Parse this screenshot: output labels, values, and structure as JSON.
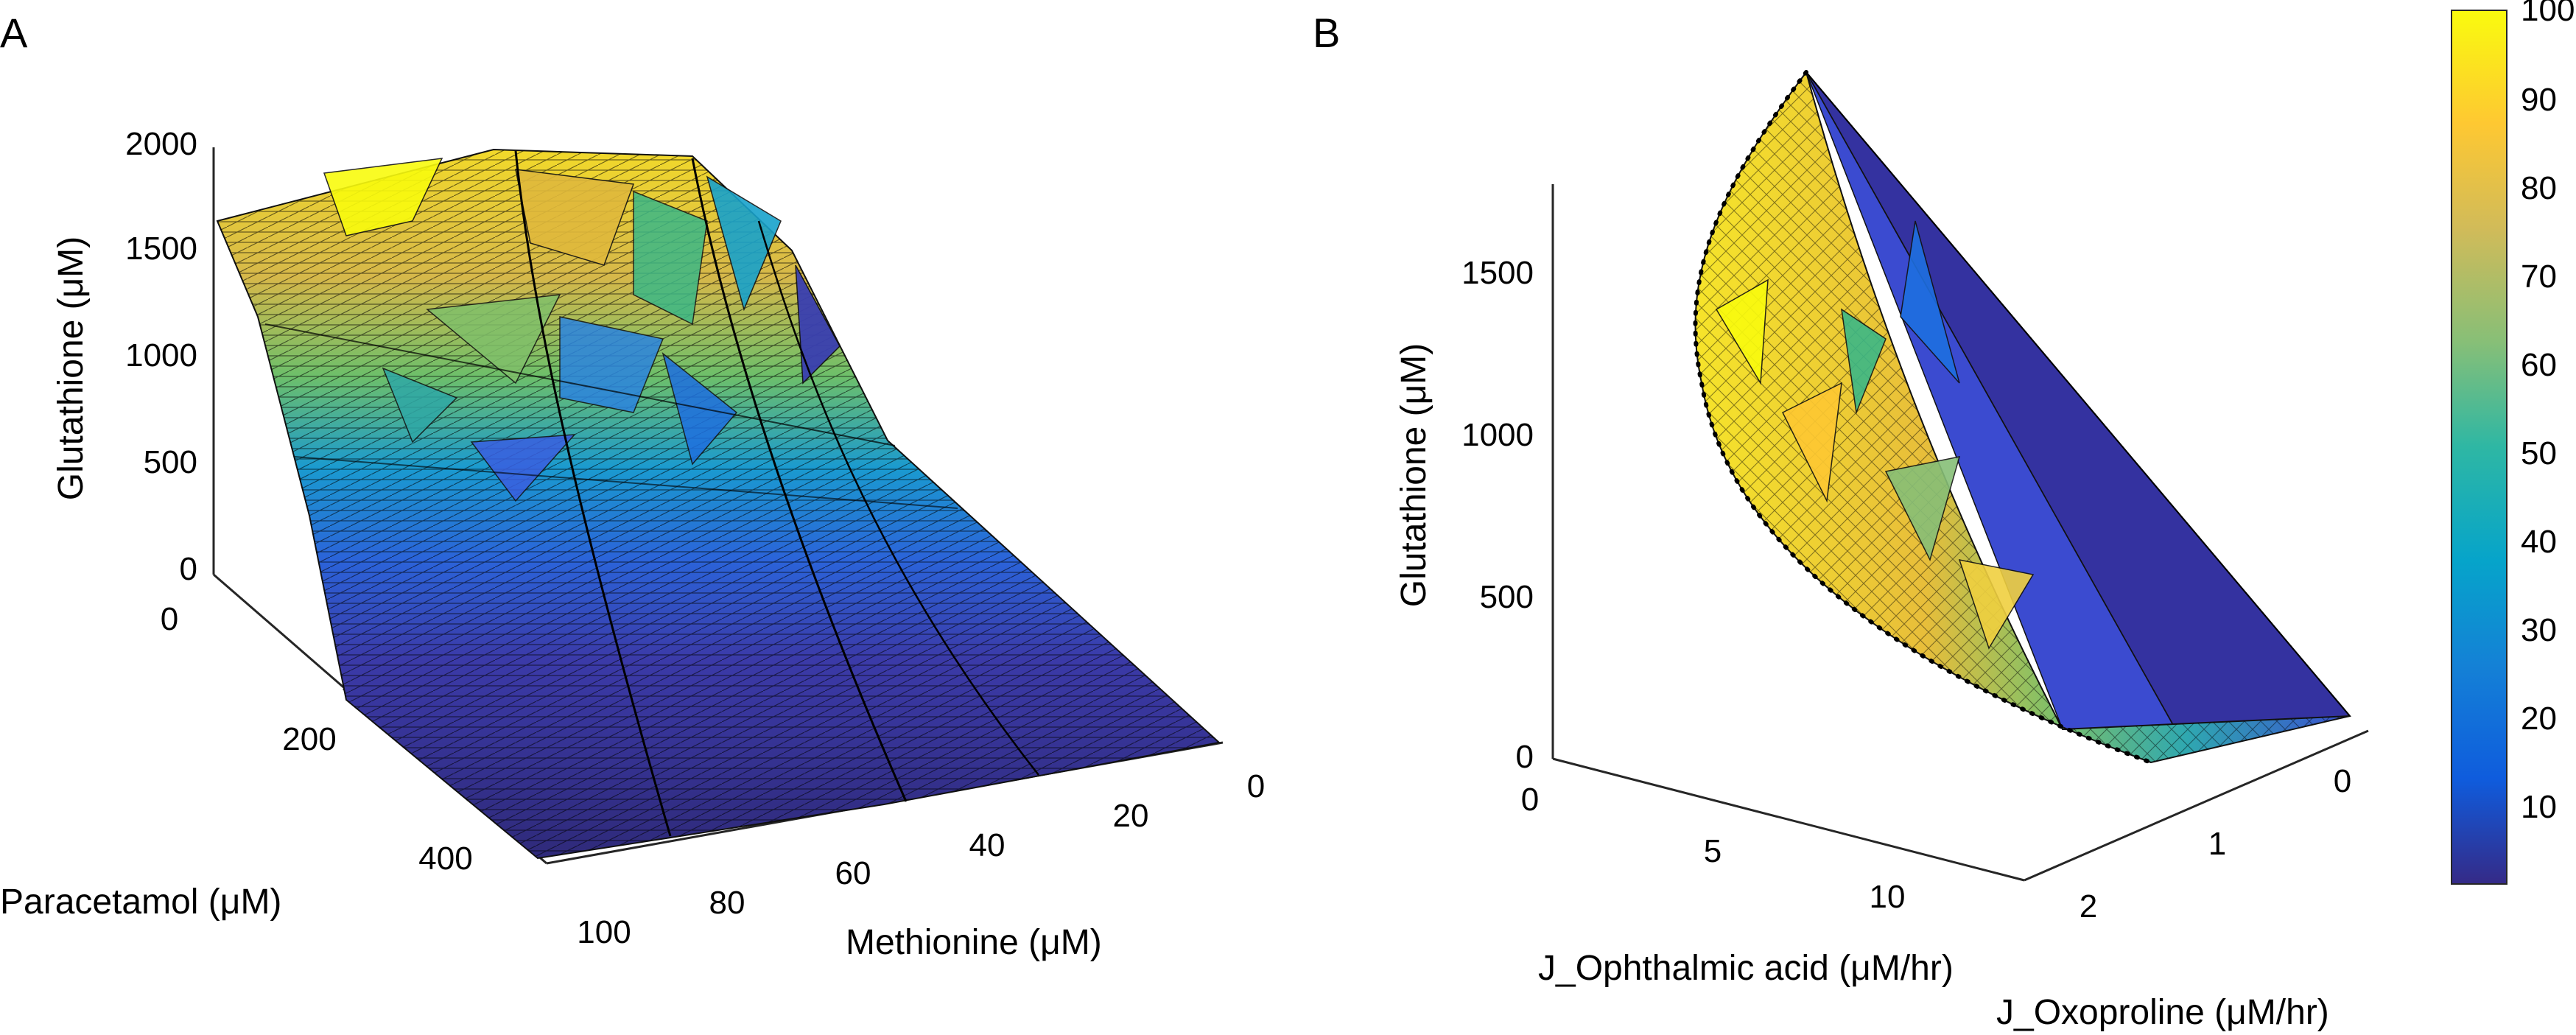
{
  "chart_data": [
    {
      "panel": "A",
      "type": "surface3d",
      "zlabel": "Glutathione (μM)",
      "xlabel": "Methionine (μM)",
      "ylabel": "Paracetamol (μM)",
      "z_ticks": [
        "0",
        "500",
        "1000",
        "1500",
        "2000"
      ],
      "x_ticks": [
        "100",
        "80",
        "60",
        "40",
        "20",
        "0"
      ],
      "y_ticks": [
        "0",
        "200",
        "400"
      ],
      "xlim": [
        0,
        100
      ],
      "ylim": [
        0,
        500
      ],
      "zlim": [
        0,
        2000
      ],
      "color_by": "colorbar value 0-100",
      "surface_samples": [
        {
          "methionine": 100,
          "paracetamol": 0,
          "glutathione": 1650,
          "color_value": 92
        },
        {
          "methionine": 60,
          "paracetamol": 0,
          "glutathione": 1990,
          "color_value": 88
        },
        {
          "methionine": 30,
          "paracetamol": 0,
          "glutathione": 1990,
          "color_value": 75
        },
        {
          "methionine": 15,
          "paracetamol": 0,
          "glutathione": 1300,
          "color_value": 38
        },
        {
          "methionine": 0,
          "paracetamol": 0,
          "glutathione": 1000,
          "color_value": 20
        },
        {
          "methionine": 100,
          "paracetamol": 100,
          "glutathione": 1100,
          "color_value": 70
        },
        {
          "methionine": 100,
          "paracetamol": 200,
          "glutathione": 300,
          "color_value": 20
        },
        {
          "methionine": 100,
          "paracetamol": 300,
          "glutathione": 60,
          "color_value": 10
        },
        {
          "methionine": 100,
          "paracetamol": 500,
          "glutathione": 0,
          "color_value": 5
        },
        {
          "methionine": 0,
          "paracetamol": 500,
          "glutathione": 0,
          "color_value": 5
        }
      ]
    },
    {
      "panel": "B",
      "type": "surface3d",
      "zlabel": "Glutathione (μM)",
      "xlabel": "J_Ophthalmic acid (μM/hr)",
      "ylabel": "J_Oxoproline (μM/hr)",
      "z_ticks": [
        "0",
        "500",
        "1000",
        "1500"
      ],
      "x_ticks": [
        "0",
        "5",
        "10"
      ],
      "y_ticks": [
        "0",
        "1",
        "2"
      ],
      "xlim": [
        0,
        13
      ],
      "ylim": [
        0,
        2.5
      ],
      "zlim": [
        0,
        1800
      ],
      "color_by": "colorbar value 0-100",
      "boundary_samples": [
        {
          "j_ophthalmic": 0,
          "j_oxoproline": 0.2,
          "glutathione": 1780
        },
        {
          "j_ophthalmic": 3,
          "j_oxoproline": 0.8,
          "glutathione": 1200
        },
        {
          "j_ophthalmic": 6,
          "j_oxoproline": 1.3,
          "glutathione": 700
        },
        {
          "j_ophthalmic": 9,
          "j_oxoproline": 1.6,
          "glutathione": 300
        },
        {
          "j_ophthalmic": 12,
          "j_oxoproline": 1.4,
          "glutathione": 20
        },
        {
          "j_ophthalmic": 12,
          "j_oxoproline": 0,
          "glutathione": 50
        }
      ]
    }
  ],
  "colorbar": {
    "min": 0,
    "max": 100,
    "ticks": [
      "10",
      "20",
      "30",
      "40",
      "50",
      "60",
      "70",
      "80",
      "90",
      "100"
    ],
    "colormap": [
      "#352a87",
      "#0f5cdd",
      "#1481d6",
      "#06a4ca",
      "#2eb7a4",
      "#87bf77",
      "#d1bb59",
      "#fec832",
      "#f9fb0e"
    ]
  },
  "labels": {
    "panel_a": "A",
    "panel_b": "B"
  }
}
